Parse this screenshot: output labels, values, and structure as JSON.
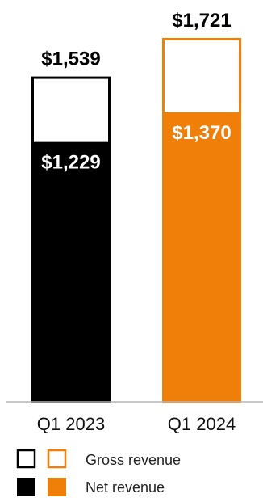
{
  "chart_data": {
    "type": "bar",
    "categories": [
      "Q1 2023",
      "Q1 2024"
    ],
    "series": [
      {
        "name": "Gross revenue",
        "values": [
          1539,
          1721
        ],
        "labels": [
          "$1,539",
          "$1,721"
        ]
      },
      {
        "name": "Net revenue",
        "values": [
          1229,
          1370
        ],
        "labels": [
          "$1,229",
          "$1,370"
        ]
      }
    ],
    "bar_colors": [
      "#000000",
      "#f07f09"
    ],
    "title": "",
    "xlabel": "",
    "ylabel": "",
    "ylim": [
      0,
      1721
    ],
    "grid": false,
    "legend_position": "bottom"
  },
  "legend": {
    "gross_label": "Gross revenue",
    "net_label": "Net revenue"
  }
}
